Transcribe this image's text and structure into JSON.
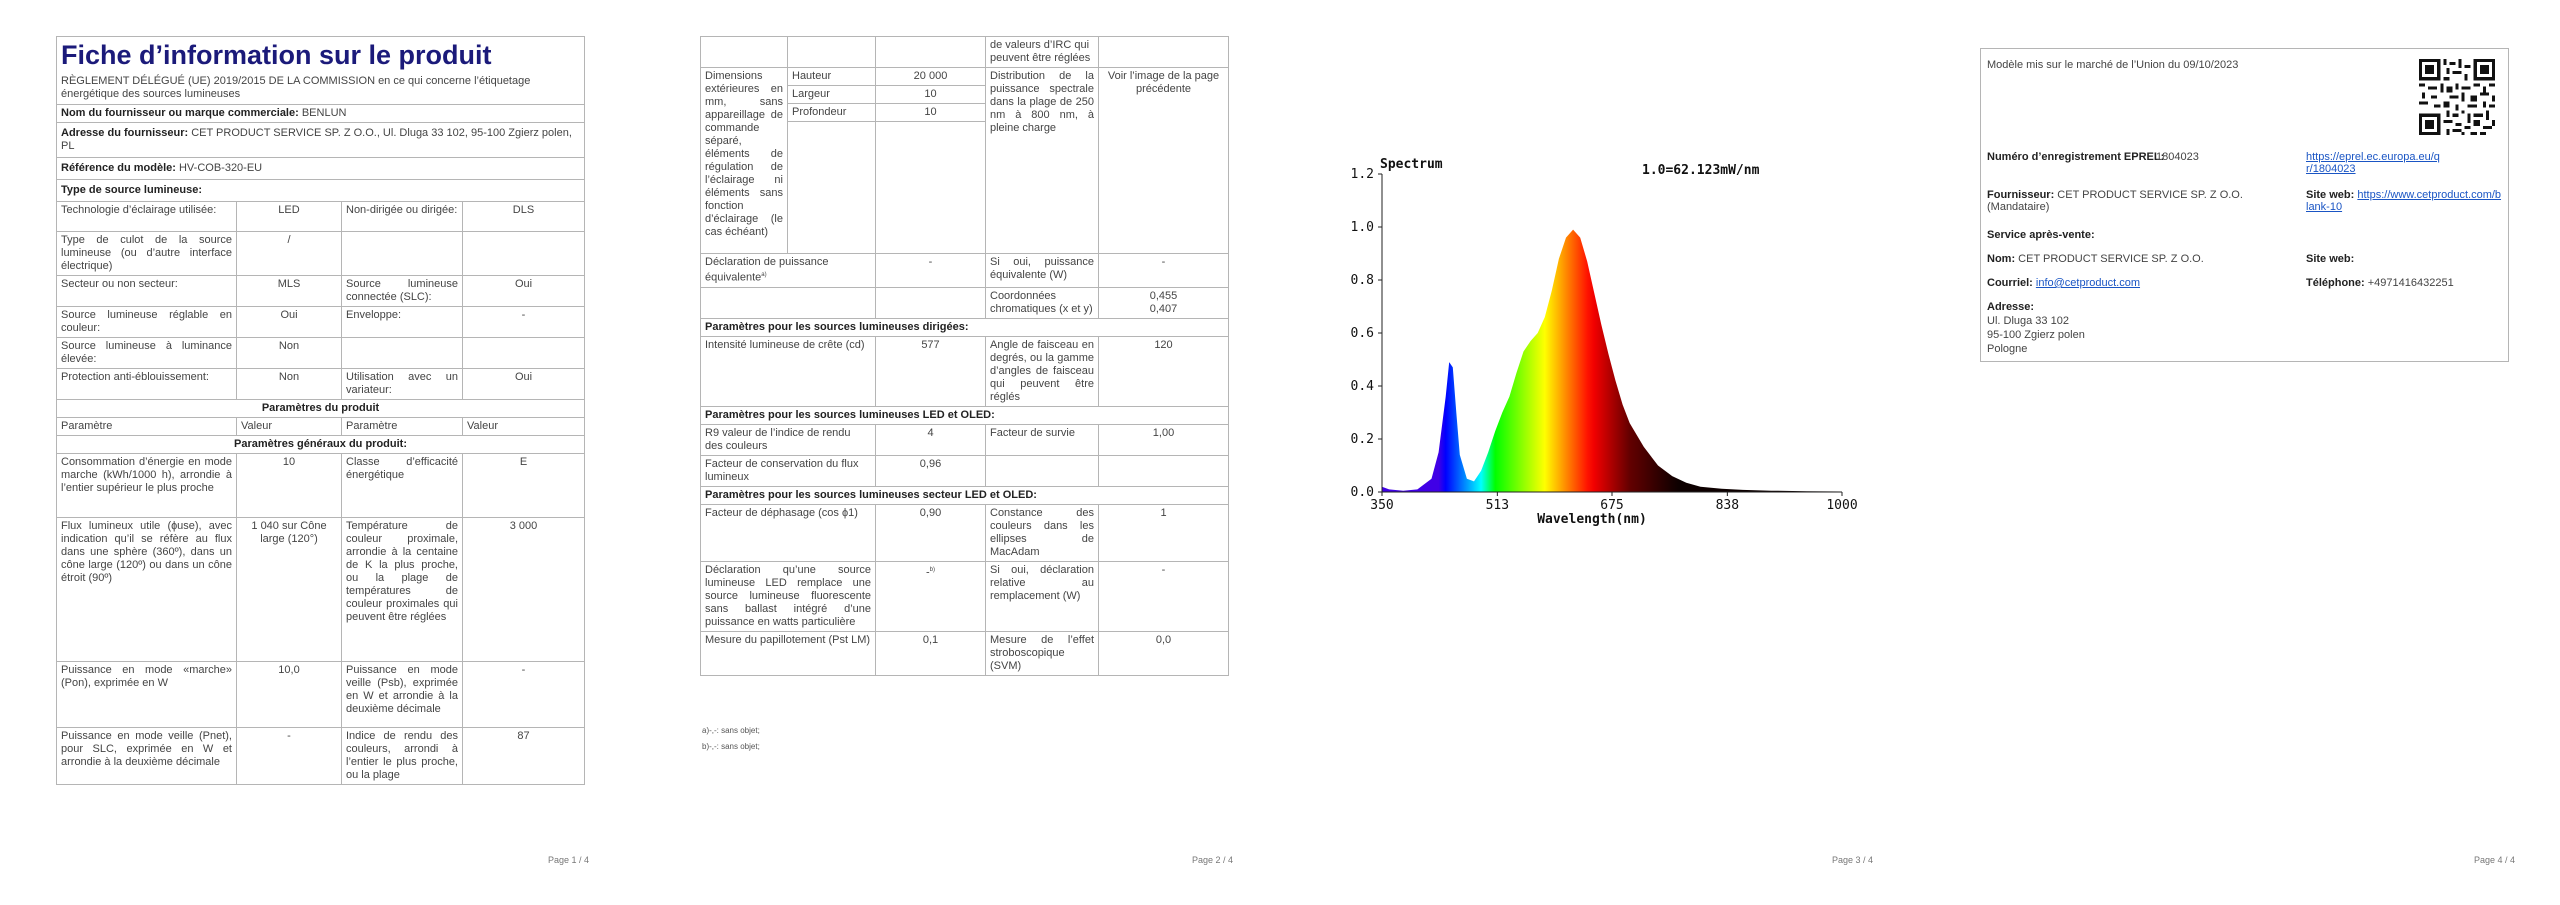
{
  "page1": {
    "title": "Fiche d’information sur le produit",
    "regulation": "RÈGLEMENT DÉLÉGUÉ (UE) 2019/2015 DE LA COMMISSION en ce qui concerne l’étiquetage énergétique des sources lumineuses",
    "supplier_name_label": "Nom du fournisseur ou marque commerciale:",
    "supplier_name_value": "BENLUN",
    "supplier_address_label": "Adresse du fournisseur:",
    "supplier_address_value": "CET PRODUCT SERVICE SP. Z O.O., Ul. Dluga 33 102, 95-100 Zgierz polen, PL",
    "model_label": "Référence du modèle:",
    "model_value": "HV-COB-320-EU",
    "source_type_label": "Type de source lumineuse:",
    "rows": [
      {
        "a": "Technologie d’éclairage utilisée:",
        "b": "LED",
        "c": "Non-dirigée ou dirigée:",
        "d": "DLS"
      },
      {
        "a": "Type de culot de la source lumineuse (ou d’autre interface électrique)",
        "b": "/",
        "c": "",
        "d": ""
      },
      {
        "a": "Secteur ou non secteur:",
        "b": "MLS",
        "c": "Source lumineuse connectée (SLC):",
        "d": "Oui"
      },
      {
        "a": "Source lumineuse réglable en couleur:",
        "b": "Oui",
        "c": "Enveloppe:",
        "d": "-"
      },
      {
        "a": "Source lumineuse à luminance élevée:",
        "b": "Non",
        "c": "",
        "d": ""
      },
      {
        "a": "Protection anti-éblouissement:",
        "b": "Non",
        "c": "Utilisation avec un variateur:",
        "d": "Oui"
      }
    ],
    "product_params_heading": "Paramètres du produit",
    "header_cols": [
      "Paramètre",
      "Valeur",
      "Paramètre",
      "Valeur"
    ],
    "general_params_heading": "Paramètres généraux du produit:",
    "param_rows": [
      {
        "a": "Consommation d’énergie en mode marche (kWh/1000 h), arrondie à l’entier supérieur le plus proche",
        "b": "10",
        "c": "Classe d’efficacité énergétique",
        "d": "E"
      },
      {
        "a": "Flux lumineux utile (ɸuse), avec indication qu’il se réfère au flux dans une sphère (360º), dans un cône large (120º) ou dans un cône étroit (90º)",
        "b": "1 040 sur Cône large (120°)",
        "c": "Température de couleur proximale, arrondie à la centaine de K la plus proche, ou la plage de températures de couleur proximales qui peuvent être réglées",
        "d": "3 000"
      },
      {
        "a": "Puissance en mode «marche» (Pon), exprimée en W",
        "b": "10,0",
        "c": "Puissance en mode veille (Psb), exprimée en W et arrondie à la deuxième décimale",
        "d": "-"
      },
      {
        "a": "Puissance en mode veille (Pnet), pour SLC, exprimée en W et arrondie à la deuxième décimale",
        "b": "-",
        "c": "Indice de rendu des couleurs, arrondi à l’entier le plus proche, ou la plage",
        "d": "87"
      }
    ],
    "page_number": "Page 1 / 4"
  },
  "page2": {
    "cont_text": "de valeurs d’IRC qui peuvent être réglées",
    "dims_label": "Dimensions extérieures en mm, sans appareillage de commande séparé, éléments de régulation de l’éclairage ni éléments sans fonction d’éclairage (le cas échéant)",
    "dims": [
      {
        "name": "Hauteur",
        "value": "20 000"
      },
      {
        "name": "Largeur",
        "value": "10"
      },
      {
        "name": "Profondeur",
        "value": "10"
      }
    ],
    "spectral_label": "Distribution de la puissance spectrale dans la plage de 250 nm à 800 nm, à pleine charge",
    "spectral_value": "Voir l’image de la page précédente",
    "rows_a": [
      {
        "a": "Déclaration de puissance équivalente",
        "b": "-",
        "c": "Si oui, puissance équivalente (W)",
        "d": "-"
      },
      {
        "a": "",
        "b": "",
        "c": "Coordonnées chromatiques (x et y)",
        "d": "0,455\n0,407"
      }
    ],
    "directional_heading": "Paramètres pour les sources lumineuses dirigées:",
    "rows_b": [
      {
        "a": "Intensité lumineuse de crête (cd)",
        "b": "577",
        "c": "Angle de faisceau en degrés, ou la gamme d’angles de faisceau qui peuvent être réglés",
        "d": "120"
      }
    ],
    "led_heading": "Paramètres pour les sources lumineuses LED et OLED:",
    "rows_c": [
      {
        "a": "R9 valeur de l’indice de rendu des couleurs",
        "b": "4",
        "c": "Facteur de survie",
        "d": "1,00"
      },
      {
        "a": "Facteur de conservation du flux lumineux",
        "b": "0,96",
        "c": "",
        "d": ""
      }
    ],
    "mains_heading": "Paramètres pour les sources lumineuses secteur LED et OLED:",
    "rows_d": [
      {
        "a": "Facteur de déphasage (cos ϕ1)",
        "b": "0,90",
        "c": "Constance des couleurs dans les ellipses de MacAdam",
        "d": "1"
      },
      {
        "a": "Déclaration qu’une source lumineuse LED remplace une source lumineuse fluorescente sans ballast intégré d’une puissance en watts particulière",
        "b": "-",
        "c": "Si oui, déclaration relative au remplacement (W)",
        "d": "-"
      },
      {
        "a": "Mesure du papillotement (Pst LM)",
        "b": "0,1",
        "c": "Mesure de l’effet stroboscopique (SVM)",
        "d": "0,0"
      }
    ],
    "footnote_a": "a)-,-: sans objet;",
    "footnote_b": "b)-,-: sans objet;",
    "page_number": "Page 2 / 4"
  },
  "page3": {
    "page_number": "Page 3 / 4",
    "chart_data": {
      "type": "area",
      "title": "Spectrum",
      "annotation": "1.0=62.123mW/nm",
      "xlabel": "Wavelength(nm)",
      "ylabel": "",
      "xlim": [
        350,
        1000
      ],
      "ylim": [
        0,
        1.2
      ],
      "x_ticks": [
        "350",
        "513",
        "675",
        "838",
        "1000"
      ],
      "y_ticks": [
        "0.0",
        "0.2",
        "0.4",
        "0.6",
        "0.8",
        "1.0",
        "1.2"
      ],
      "grid": false,
      "x": [
        350,
        360,
        380,
        400,
        420,
        430,
        440,
        445,
        450,
        455,
        460,
        470,
        480,
        490,
        500,
        510,
        520,
        530,
        540,
        550,
        560,
        570,
        580,
        590,
        600,
        610,
        620,
        630,
        640,
        650,
        660,
        670,
        680,
        690,
        700,
        720,
        740,
        760,
        780,
        800,
        830,
        860,
        900,
        950,
        1000
      ],
      "values": [
        0.02,
        0.01,
        0.005,
        0.01,
        0.05,
        0.15,
        0.36,
        0.49,
        0.47,
        0.3,
        0.14,
        0.05,
        0.04,
        0.08,
        0.15,
        0.23,
        0.3,
        0.36,
        0.45,
        0.53,
        0.57,
        0.6,
        0.66,
        0.76,
        0.88,
        0.96,
        0.99,
        0.96,
        0.87,
        0.75,
        0.63,
        0.52,
        0.42,
        0.33,
        0.26,
        0.17,
        0.1,
        0.06,
        0.035,
        0.02,
        0.012,
        0.008,
        0.005,
        0.003,
        0.002
      ]
    }
  },
  "page4": {
    "market_date": "Modèle mis sur le marché de l’Union du 09/10/2023",
    "eprel_label": "Numéro d’enregistrement EPREL:",
    "eprel_value": "1804023",
    "eprel_link": "https://eprel.ec.europa.eu/qr/1804023",
    "supplier_label": "Fournisseur:",
    "supplier_value": "CET PRODUCT SERVICE SP. Z O.O. (Mandataire)",
    "website_label": "Site web:",
    "website_value": "https://www.cetproduct.com/blank-10",
    "after_sales": "Service après-vente:",
    "name_label": "Nom:",
    "name_value": "CET PRODUCT SERVICE SP. Z O.O.",
    "site_label2": "Site web:",
    "mail_label": "Courriel:",
    "mail_value": "info@cetproduct.com",
    "phone_label": "Téléphone:",
    "phone_value": "+4971416432251",
    "address_label": "Adresse:",
    "address_lines": [
      "Ul. Dluga 33 102",
      "95-100 Zgierz polen",
      "Pologne"
    ],
    "page_number": "Page 4 / 4",
    "qr_icon": "qr-code-icon"
  }
}
